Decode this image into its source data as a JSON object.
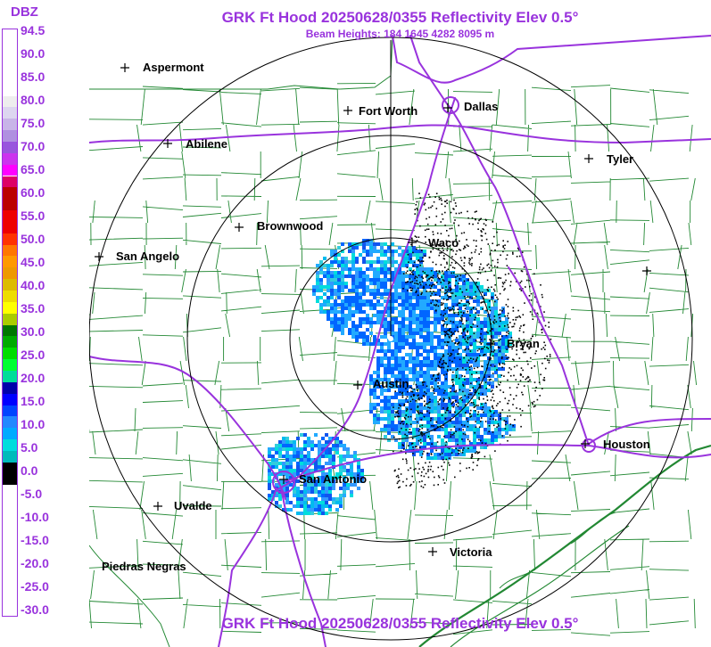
{
  "header": {
    "title": "GRK Ft Hood 20250628/0355 Reflectivity Elev 0.5°",
    "beam_heights": "Beam Heights: 184 1645 4282 8095 m"
  },
  "footer": {
    "title": "GRK Ft Hood 20250628/0355 Reflectivity Elev 0.5°"
  },
  "legend": {
    "unit": "DBZ",
    "levels": [
      "94.5",
      "90.0",
      "85.0",
      "80.0",
      "75.0",
      "70.0",
      "65.0",
      "60.0",
      "55.0",
      "50.0",
      "45.0",
      "40.0",
      "35.0",
      "30.0",
      "25.0",
      "20.0",
      "15.0",
      "10.0",
      "5.0",
      "0.0",
      "-5.0",
      "-10.0",
      "-15.0",
      "-20.0",
      "-25.0",
      "-30.0"
    ],
    "bands": [
      {
        "value": 94.5,
        "color": "#ffffff"
      },
      {
        "value": 80.0,
        "color": "#eeeeee"
      },
      {
        "value": 77.5,
        "color": "#ddd6f0"
      },
      {
        "value": 75.0,
        "color": "#c8b4e8"
      },
      {
        "value": 72.5,
        "color": "#b090e0"
      },
      {
        "value": 70.0,
        "color": "#9955dd"
      },
      {
        "value": 67.5,
        "color": "#cc33ee"
      },
      {
        "value": 65.0,
        "color": "#ff00ff"
      },
      {
        "value": 62.5,
        "color": "#dd0066"
      },
      {
        "value": 60.0,
        "color": "#bb0000"
      },
      {
        "value": 55.0,
        "color": "#ee0000"
      },
      {
        "value": 50.0,
        "color": "#ff3300"
      },
      {
        "value": 47.5,
        "color": "#ff7700"
      },
      {
        "value": 45.0,
        "color": "#ff9900"
      },
      {
        "value": 42.5,
        "color": "#ee9900"
      },
      {
        "value": 40.0,
        "color": "#ddbb00"
      },
      {
        "value": 37.5,
        "color": "#eedd00"
      },
      {
        "value": 35.0,
        "color": "#ffff00"
      },
      {
        "value": 32.5,
        "color": "#aacc00"
      },
      {
        "value": 30.0,
        "color": "#007700"
      },
      {
        "value": 27.5,
        "color": "#00aa00"
      },
      {
        "value": 25.0,
        "color": "#00dd00"
      },
      {
        "value": 22.5,
        "color": "#00ff33"
      },
      {
        "value": 20.0,
        "color": "#00dd99"
      },
      {
        "value": 17.5,
        "color": "#0000aa"
      },
      {
        "value": 15.0,
        "color": "#0000ff"
      },
      {
        "value": 12.5,
        "color": "#0044ff"
      },
      {
        "value": 10.0,
        "color": "#2288ff"
      },
      {
        "value": 7.5,
        "color": "#00aaff"
      },
      {
        "value": 5.0,
        "color": "#00dddd"
      },
      {
        "value": 2.5,
        "color": "#00bbbb"
      },
      {
        "value": 0.0,
        "color": "#000000"
      },
      {
        "value": -5.0,
        "color": "#ffffff"
      }
    ]
  },
  "cities": [
    {
      "name": "Aspermont"
    },
    {
      "name": "Fort Worth"
    },
    {
      "name": "Dallas"
    },
    {
      "name": "Abilene"
    },
    {
      "name": "Tyler"
    },
    {
      "name": "Brownwood"
    },
    {
      "name": "Waco"
    },
    {
      "name": "San Angelo"
    },
    {
      "name": "Bryan"
    },
    {
      "name": "Austin"
    },
    {
      "name": "Houston"
    },
    {
      "name": "San Antonio"
    },
    {
      "name": "Uvalde"
    },
    {
      "name": "Victoria"
    },
    {
      "name": "Piedras Negras"
    }
  ],
  "colors": {
    "title": "#9933dd",
    "county_lines": "#228833",
    "highways": "#9933dd",
    "range_rings": "#000000"
  }
}
